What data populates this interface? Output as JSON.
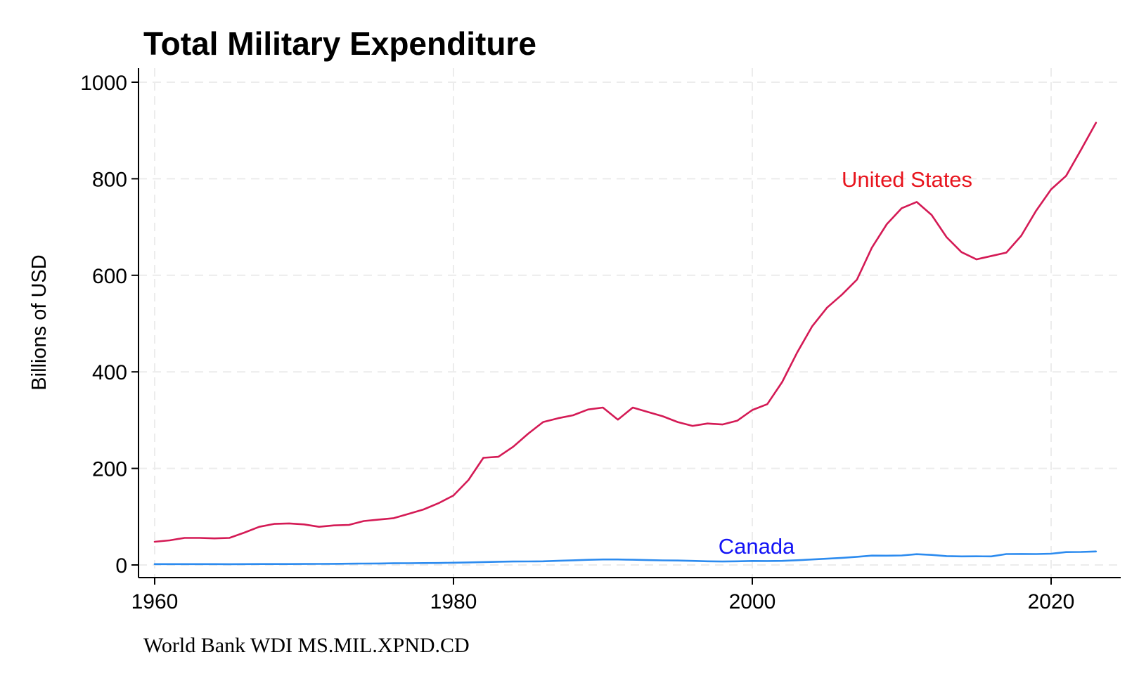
{
  "chart_data": {
    "type": "line",
    "title": "Total Military Expenditure",
    "xlabel": "",
    "ylabel": "Billions of USD",
    "xlim": [
      1960,
      2024
    ],
    "ylim": [
      0,
      1000
    ],
    "x_ticks": [
      "1960",
      "1980",
      "2000",
      "2020"
    ],
    "y_ticks": [
      "0",
      "200",
      "400",
      "600",
      "800",
      "1000"
    ],
    "grid": true,
    "legend": "none",
    "note": "World Bank WDI MS.MIL.XPND.CD",
    "series": [
      {
        "name": "United States",
        "color": "#d41a55",
        "label_color": "#e8141d",
        "x": [
          1960,
          1961,
          1962,
          1963,
          1964,
          1965,
          1966,
          1967,
          1968,
          1969,
          1970,
          1971,
          1972,
          1973,
          1974,
          1975,
          1976,
          1977,
          1978,
          1979,
          1980,
          1981,
          1982,
          1983,
          1984,
          1985,
          1986,
          1987,
          1988,
          1989,
          1990,
          1991,
          1992,
          1993,
          1994,
          1995,
          1996,
          1997,
          1998,
          1999,
          2000,
          2001,
          2002,
          2003,
          2004,
          2005,
          2006,
          2007,
          2008,
          2009,
          2010,
          2011,
          2012,
          2013,
          2014,
          2015,
          2016,
          2017,
          2018,
          2019,
          2020,
          2021,
          2022,
          2023
        ],
        "values": [
          48,
          51,
          56,
          56,
          55,
          56,
          67,
          79,
          85,
          86,
          84,
          79,
          82,
          83,
          91,
          94,
          97,
          106,
          115,
          128,
          144,
          176,
          222,
          224,
          245,
          272,
          296,
          304,
          310,
          322,
          326,
          301,
          326,
          317,
          308,
          296,
          288,
          293,
          291,
          299,
          321,
          333,
          379,
          440,
          494,
          533,
          560,
          591,
          657,
          706,
          739,
          752,
          725,
          679,
          648,
          633,
          640,
          647,
          682,
          734,
          778,
          806,
          860,
          916
        ]
      },
      {
        "name": "Canada",
        "color": "#2c8bef",
        "label_color": "#1414f5",
        "x": [
          1960,
          1961,
          1962,
          1963,
          1964,
          1965,
          1966,
          1967,
          1968,
          1969,
          1970,
          1971,
          1972,
          1973,
          1974,
          1975,
          1976,
          1977,
          1978,
          1979,
          1980,
          1981,
          1982,
          1983,
          1984,
          1985,
          1986,
          1987,
          1988,
          1989,
          1990,
          1991,
          1992,
          1993,
          1994,
          1995,
          1996,
          1997,
          1998,
          1999,
          2000,
          2001,
          2002,
          2003,
          2004,
          2005,
          2006,
          2007,
          2008,
          2009,
          2010,
          2011,
          2012,
          2013,
          2014,
          2015,
          2016,
          2017,
          2018,
          2019,
          2020,
          2021,
          2022,
          2023
        ],
        "values": [
          1.7,
          1.7,
          1.8,
          1.7,
          1.8,
          1.6,
          1.7,
          1.9,
          1.9,
          1.9,
          2.1,
          2.2,
          2.4,
          2.6,
          2.9,
          3.1,
          3.5,
          3.7,
          3.9,
          4.1,
          4.6,
          5.2,
          5.9,
          6.7,
          7.1,
          7.3,
          7.6,
          8.6,
          9.6,
          10.6,
          11.4,
          11.4,
          10.8,
          10.1,
          9.5,
          9.1,
          8.4,
          7.6,
          7.2,
          7.5,
          8.3,
          8.2,
          8.4,
          9.8,
          11.3,
          12.9,
          14.7,
          16.9,
          19.3,
          19.2,
          19.6,
          22.3,
          20.8,
          18.4,
          17.8,
          17.9,
          17.8,
          22.6,
          22.7,
          22.5,
          23.3,
          26.6,
          26.9,
          27.9
        ]
      }
    ]
  }
}
